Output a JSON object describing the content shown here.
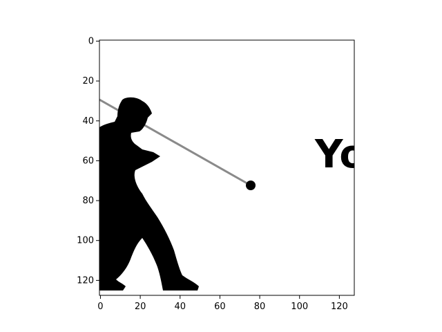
{
  "chart_data": {
    "type": "image",
    "title": "",
    "xlabel": "",
    "ylabel": "",
    "xlim": [
      -0.5,
      127.5
    ],
    "ylim": [
      127.5,
      -0.5
    ],
    "x_ticks": [
      0,
      20,
      40,
      60,
      80,
      100,
      120
    ],
    "y_ticks": [
      0,
      20,
      40,
      60,
      80,
      100,
      120
    ],
    "y_axis_inverted": true,
    "grid": false,
    "colormap": "gray",
    "image_text": "Yo",
    "image_content": {
      "figure": "silhouette-golfer",
      "shaft_start": [
        0,
        30
      ],
      "shaft_end": [
        76,
        72
      ]
    }
  }
}
